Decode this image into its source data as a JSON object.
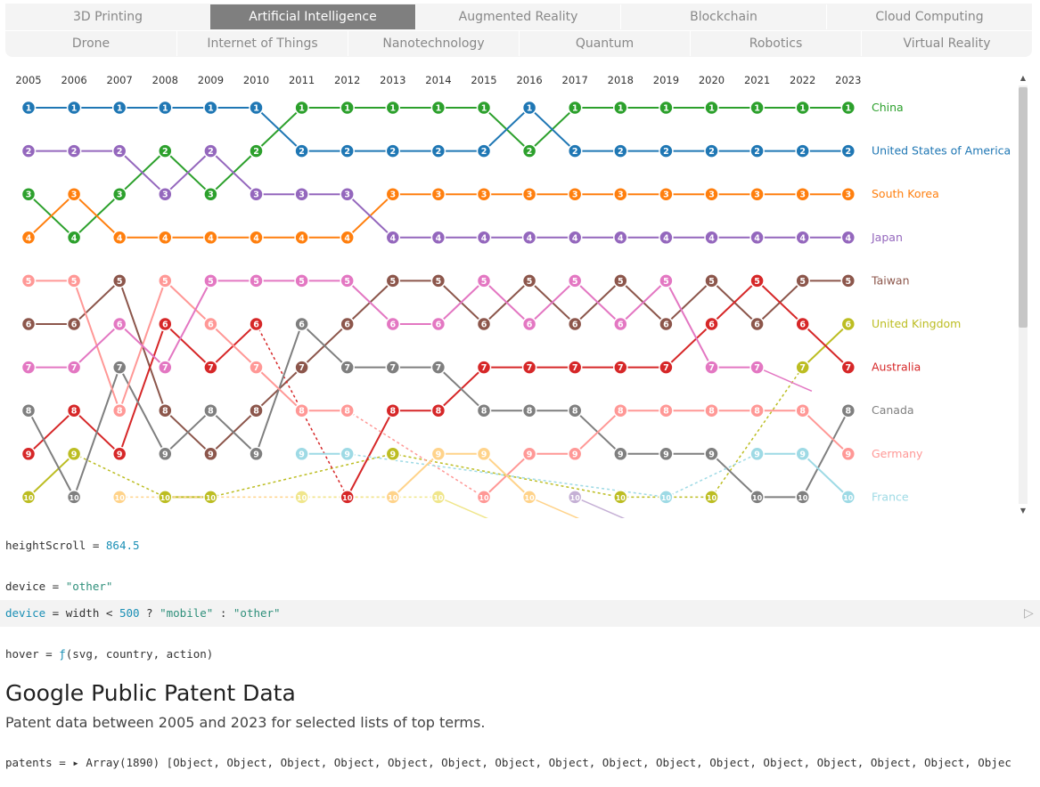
{
  "tabs": {
    "row1": [
      "3D Printing",
      "Artificial Intelligence",
      "Augmented Reality",
      "Blockchain",
      "Cloud Computing"
    ],
    "row2": [
      "Drone",
      "Internet of Things",
      "Nanotechnology",
      "Quantum",
      "Robotics",
      "Virtual Reality"
    ],
    "active": "Artificial Intelligence"
  },
  "chart_data": {
    "type": "line",
    "x": [
      2005,
      2006,
      2007,
      2008,
      2009,
      2010,
      2011,
      2012,
      2013,
      2014,
      2015,
      2016,
      2017,
      2018,
      2019,
      2020,
      2021,
      2022,
      2023
    ],
    "ylim": [
      1,
      10
    ],
    "y_inverted": true,
    "series": [
      {
        "name": "China",
        "color": "#2ca02c",
        "ranks": [
          3,
          4,
          3,
          2,
          3,
          2,
          1,
          1,
          1,
          1,
          1,
          2,
          1,
          1,
          1,
          1,
          1,
          1,
          1
        ]
      },
      {
        "name": "United States of America",
        "color": "#1f77b4",
        "ranks": [
          1,
          1,
          1,
          1,
          1,
          1,
          2,
          2,
          2,
          2,
          2,
          1,
          2,
          2,
          2,
          2,
          2,
          2,
          2
        ]
      },
      {
        "name": "South Korea",
        "color": "#ff7f0e",
        "ranks": [
          4,
          3,
          4,
          4,
          4,
          4,
          4,
          4,
          3,
          3,
          3,
          3,
          3,
          3,
          3,
          3,
          3,
          3,
          3
        ]
      },
      {
        "name": "Japan",
        "color": "#9467bd",
        "ranks": [
          2,
          2,
          2,
          3,
          2,
          3,
          3,
          3,
          4,
          4,
          4,
          4,
          4,
          4,
          4,
          4,
          4,
          4,
          4
        ]
      },
      {
        "name": "Taiwan",
        "color": "#8c564b",
        "ranks": [
          6,
          6,
          5,
          8,
          9,
          8,
          7,
          6,
          5,
          5,
          6,
          5,
          6,
          5,
          6,
          5,
          6,
          5,
          5
        ]
      },
      {
        "name": "United Kingdom",
        "color": "#bcbd22",
        "ranks": [
          10,
          9,
          null,
          10,
          10,
          null,
          null,
          null,
          9,
          null,
          null,
          null,
          null,
          10,
          null,
          10,
          null,
          7,
          6
        ]
      },
      {
        "name": "Australia",
        "color": "#d62728",
        "ranks": [
          9,
          8,
          9,
          6,
          7,
          6,
          null,
          10,
          8,
          8,
          7,
          7,
          7,
          7,
          7,
          6,
          5,
          6,
          7
        ]
      },
      {
        "name": "Canada",
        "color": "#7f7f7f",
        "ranks": [
          8,
          10,
          7,
          9,
          8,
          9,
          6,
          7,
          7,
          7,
          8,
          8,
          8,
          9,
          9,
          9,
          10,
          10,
          8
        ]
      },
      {
        "name": "Germany",
        "color": "#ff9896",
        "ranks": [
          5,
          5,
          8,
          5,
          6,
          7,
          8,
          8,
          null,
          null,
          10,
          9,
          9,
          8,
          8,
          8,
          8,
          8,
          9
        ]
      },
      {
        "name": "France",
        "color": "#9edae5",
        "ranks": [
          null,
          null,
          null,
          null,
          null,
          null,
          9,
          9,
          null,
          null,
          null,
          null,
          null,
          null,
          10,
          null,
          9,
          9,
          10
        ]
      },
      {
        "name": "",
        "color": "#e377c2",
        "ranks": [
          7,
          7,
          6,
          7,
          5,
          5,
          5,
          5,
          6,
          6,
          5,
          6,
          5,
          6,
          5,
          7,
          7,
          null,
          null
        ]
      },
      {
        "name": "",
        "color": "#ffd38a",
        "ranks": [
          null,
          null,
          10,
          null,
          null,
          null,
          10,
          null,
          10,
          9,
          9,
          10,
          null,
          null,
          null,
          null,
          null,
          null,
          null
        ]
      },
      {
        "name": "",
        "color": "#f0e68c",
        "ranks": [
          null,
          null,
          null,
          null,
          null,
          null,
          10,
          null,
          null,
          10,
          null,
          null,
          null,
          null,
          null,
          null,
          null,
          null,
          null
        ]
      },
      {
        "name": "",
        "color": "#c5b0d5",
        "ranks": [
          null,
          null,
          null,
          null,
          null,
          null,
          null,
          null,
          null,
          null,
          null,
          null,
          10,
          null,
          null,
          null,
          null,
          null,
          null
        ]
      }
    ],
    "legend": "right"
  },
  "cells": {
    "heightScroll": {
      "name": "heightScroll",
      "op": " = ",
      "value": "864.5"
    },
    "device": {
      "name": "device",
      "op": " = ",
      "value": "\"other\""
    },
    "device_def": {
      "name": "device",
      "op": " = ",
      "expr1": "width",
      "lt": " < ",
      "n": "500",
      "q": " ? ",
      "a": "\"mobile\"",
      "colon": " : ",
      "b": "\"other\""
    },
    "hover": {
      "text": "hover = ",
      "f": "ƒ",
      "args": "(svg, country, action)"
    },
    "patents": {
      "text": "patents = ",
      "arrow": "▸",
      "value": "Array(1890) [Object, Object, Object, Object, Object, Object, Object, Object, Object, Object, Object, Object, Object, Object, Object, Objec"
    }
  },
  "heading": {
    "title": "Google Public Patent Data",
    "subtitle": "Patent data between 2005 and 2023 for selected lists of top terms."
  }
}
